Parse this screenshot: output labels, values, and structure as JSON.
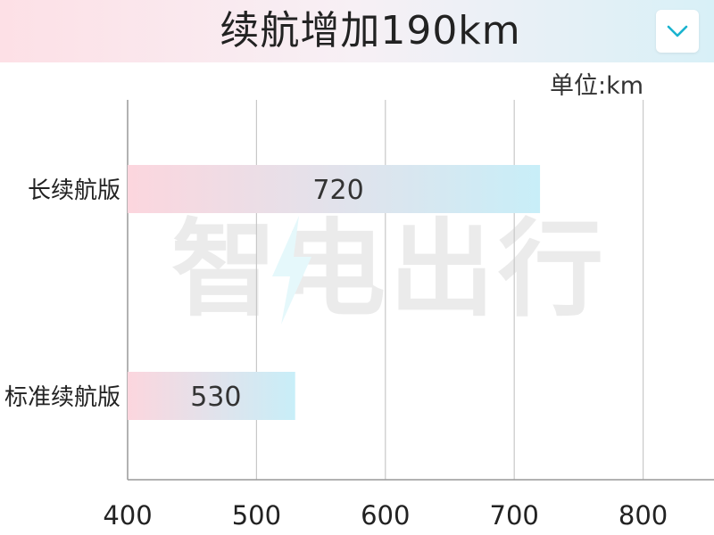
{
  "header": {
    "title": "续航增加190km",
    "menu_icon": "chevron-down-icon"
  },
  "unit_label": "单位:km",
  "watermark": {
    "text": "智电出行",
    "icon": "lightning-bolt-icon"
  },
  "colors": {
    "bar_start": "#fcd6de",
    "bar_end": "#c8eef8",
    "banner_start": "#fde0e6",
    "banner_end": "#d8f0f7",
    "chevron": "#1ab3cf",
    "grid": "#c8c8c8",
    "axis": "#999999"
  },
  "chart_data": {
    "type": "bar",
    "orientation": "horizontal",
    "title": "续航增加190km",
    "unit": "单位:km",
    "categories": [
      "长续航版",
      "标准续航版"
    ],
    "values": [
      720,
      530
    ],
    "data_labels": [
      "720",
      "530"
    ],
    "xlim": [
      400,
      855
    ],
    "xticks": [
      400,
      500,
      600,
      700,
      800
    ],
    "xtick_labels": [
      "400",
      "500",
      "600",
      "700",
      "800"
    ],
    "grid": true
  }
}
